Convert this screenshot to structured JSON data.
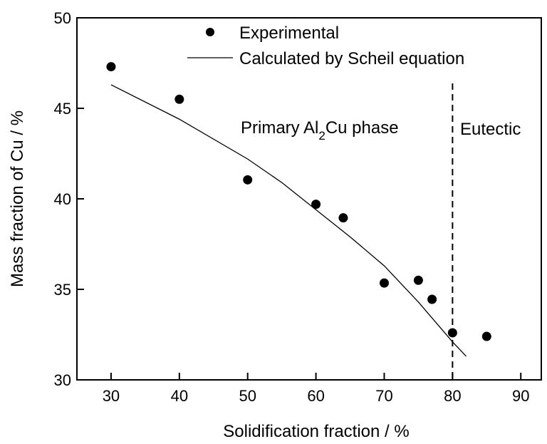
{
  "chart_data": {
    "type": "scatter",
    "xlabel": "Solidification fraction / %",
    "ylabel": "Mass fraction of Cu / %",
    "xlim": [
      25,
      93
    ],
    "ylim": [
      30,
      50
    ],
    "xticks": [
      30,
      40,
      50,
      60,
      70,
      80,
      90
    ],
    "yticks": [
      30,
      35,
      40,
      45,
      50
    ],
    "grid": false,
    "legend_position": "top-center",
    "series": [
      {
        "name": "Experimental",
        "kind": "scatter",
        "x": [
          30,
          40,
          50,
          60,
          64,
          70,
          75,
          77,
          80,
          85
        ],
        "y": [
          47.3,
          45.5,
          41.05,
          39.7,
          38.95,
          35.35,
          35.5,
          34.45,
          32.6,
          32.4
        ]
      },
      {
        "name": "Calculated by Scheil equation",
        "kind": "line",
        "x": [
          30,
          40,
          50,
          55,
          60,
          65,
          70,
          75,
          80,
          82
        ],
        "y": [
          46.3,
          44.4,
          42.2,
          40.9,
          39.4,
          37.9,
          36.3,
          34.3,
          32.1,
          31.3
        ]
      }
    ],
    "annotations": [
      {
        "text_main": "Primary Al",
        "sub": "2",
        "text_end": "Cu phase"
      },
      {
        "text": "Eutectic"
      }
    ],
    "vline": {
      "x": 80,
      "style": "dashed"
    }
  }
}
